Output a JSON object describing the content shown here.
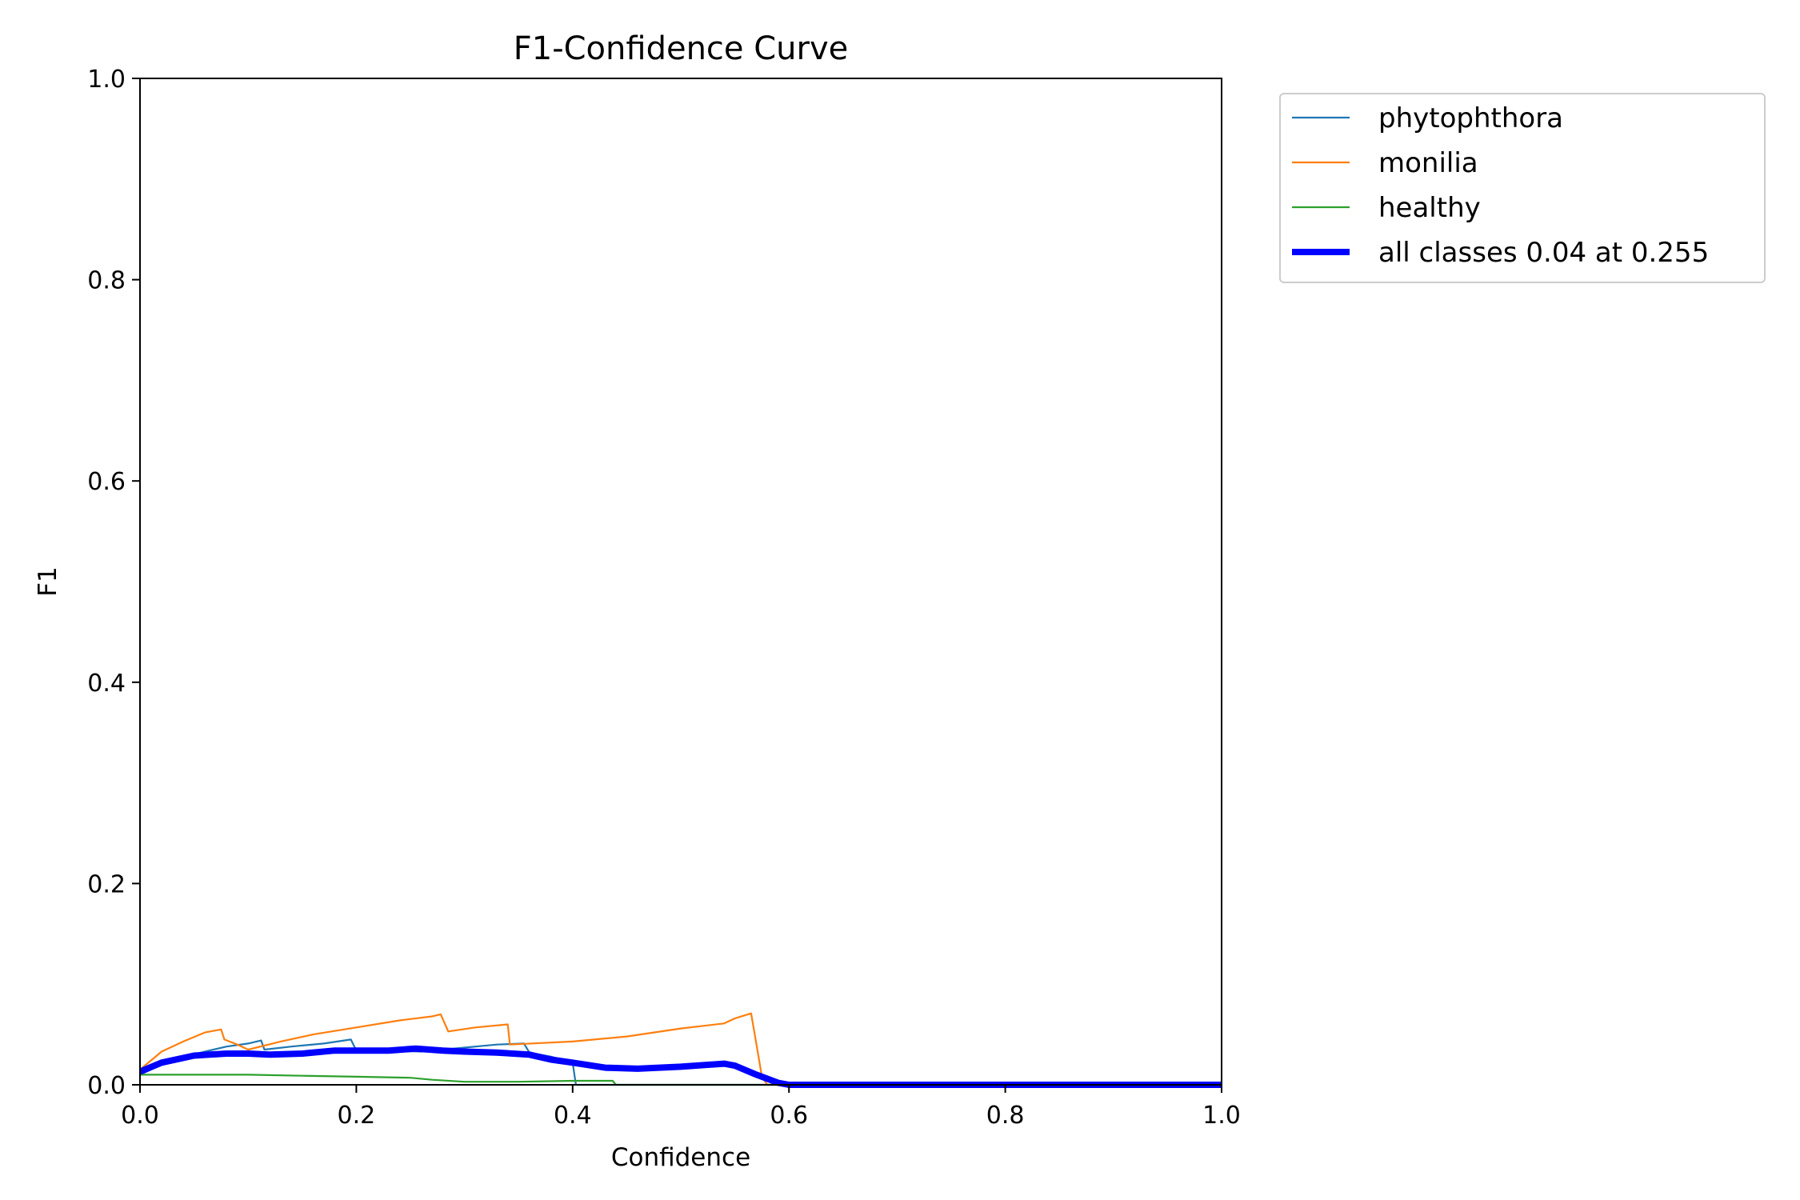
{
  "chart_data": {
    "type": "line",
    "title": "F1-Confidence Curve",
    "xlabel": "Confidence",
    "ylabel": "F1",
    "xlim": [
      0.0,
      1.0
    ],
    "ylim": [
      0.0,
      1.0
    ],
    "x_ticks": [
      "0.0",
      "0.2",
      "0.4",
      "0.6",
      "0.8",
      "1.0"
    ],
    "y_ticks": [
      "0.0",
      "0.2",
      "0.4",
      "0.6",
      "0.8",
      "1.0"
    ],
    "grid": false,
    "legend_position": "outside upper right",
    "series": [
      {
        "name": "phytophthora",
        "color": "#1f77b4",
        "x": [
          0.0,
          0.03,
          0.06,
          0.08,
          0.1,
          0.112,
          0.115,
          0.14,
          0.17,
          0.195,
          0.2,
          0.23,
          0.26,
          0.3,
          0.33,
          0.355,
          0.36,
          0.38,
          0.4,
          0.403,
          0.6,
          1.0
        ],
        "y": [
          0.01,
          0.025,
          0.033,
          0.038,
          0.041,
          0.044,
          0.035,
          0.038,
          0.041,
          0.045,
          0.034,
          0.034,
          0.033,
          0.037,
          0.04,
          0.041,
          0.032,
          0.028,
          0.022,
          0.0,
          0.0,
          0.0
        ]
      },
      {
        "name": "monilia",
        "color": "#ff7f0e",
        "x": [
          0.0,
          0.02,
          0.04,
          0.06,
          0.075,
          0.078,
          0.09,
          0.1,
          0.13,
          0.16,
          0.2,
          0.24,
          0.27,
          0.278,
          0.285,
          0.31,
          0.34,
          0.342,
          0.4,
          0.45,
          0.5,
          0.54,
          0.55,
          0.565,
          0.57,
          0.575,
          0.58,
          0.6,
          1.0
        ],
        "y": [
          0.015,
          0.033,
          0.043,
          0.052,
          0.055,
          0.045,
          0.04,
          0.035,
          0.043,
          0.05,
          0.057,
          0.064,
          0.068,
          0.07,
          0.053,
          0.057,
          0.06,
          0.04,
          0.043,
          0.048,
          0.056,
          0.061,
          0.066,
          0.071,
          0.04,
          0.008,
          0.0,
          0.0,
          0.0
        ]
      },
      {
        "name": "healthy",
        "color": "#2ca02c",
        "x": [
          0.0,
          0.05,
          0.1,
          0.15,
          0.2,
          0.25,
          0.27,
          0.3,
          0.35,
          0.4,
          0.437,
          0.44,
          0.6,
          1.0
        ],
        "y": [
          0.01,
          0.01,
          0.01,
          0.009,
          0.008,
          0.007,
          0.005,
          0.003,
          0.003,
          0.004,
          0.004,
          0.0,
          0.0,
          0.0
        ]
      },
      {
        "name": "all classes 0.04 at 0.255",
        "color": "#0000ff",
        "x": [
          0.0,
          0.02,
          0.05,
          0.08,
          0.1,
          0.12,
          0.15,
          0.18,
          0.2,
          0.23,
          0.255,
          0.28,
          0.3,
          0.33,
          0.36,
          0.38,
          0.4,
          0.43,
          0.46,
          0.5,
          0.54,
          0.55,
          0.57,
          0.59,
          0.6,
          1.0
        ],
        "y": [
          0.013,
          0.022,
          0.029,
          0.031,
          0.031,
          0.03,
          0.031,
          0.034,
          0.034,
          0.034,
          0.036,
          0.034,
          0.033,
          0.032,
          0.03,
          0.025,
          0.022,
          0.017,
          0.016,
          0.018,
          0.021,
          0.019,
          0.01,
          0.002,
          0.0,
          0.0
        ],
        "line_width": "thick"
      }
    ]
  }
}
